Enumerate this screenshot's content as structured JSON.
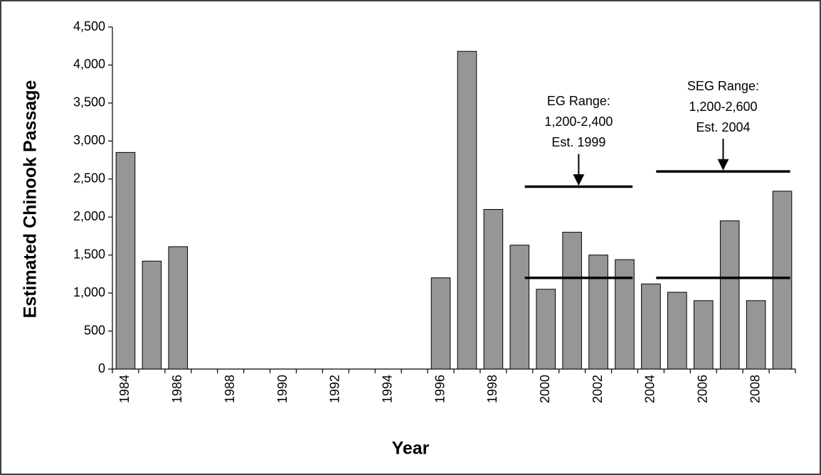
{
  "chart_data": {
    "type": "bar",
    "x_label": "Year",
    "y_label": "Estimated Chinook Passage",
    "categories": [
      "1984",
      null,
      "1986",
      null,
      "1988",
      null,
      "1990",
      null,
      "1992",
      null,
      "1994",
      null,
      "1996",
      null,
      "1998",
      null,
      "2000",
      null,
      "2002",
      null,
      "2004",
      null,
      "2006",
      null,
      "2008",
      null
    ],
    "values": [
      2850,
      1420,
      1610,
      null,
      null,
      null,
      null,
      null,
      null,
      null,
      null,
      null,
      1200,
      4180,
      2100,
      1630,
      1050,
      1800,
      1500,
      1440,
      1120,
      1010,
      900,
      1950,
      900,
      2340
    ],
    "color": "#969696",
    "ylim": [
      0,
      4500
    ],
    "yticks": [
      0,
      500,
      {
        "value": 1000,
        "label": "1,000"
      },
      {
        "value": 1500,
        "label": "1,500"
      },
      {
        "value": 2000,
        "label": "2,000"
      },
      {
        "value": 2500,
        "label": "2,500"
      },
      {
        "value": 3000,
        "label": "3,000"
      },
      {
        "value": 3500,
        "label": "3,500"
      },
      {
        "value": 4000,
        "label": "4,000"
      },
      {
        "value": 4500,
        "label": "4,500"
      }
    ],
    "grid": false,
    "ranges": [
      {
        "text": [
          "EG Range:",
          "1,200-2,400",
          "Est. 1999"
        ],
        "low": 1200,
        "high": 2400,
        "from": 15,
        "to": 19
      },
      {
        "text": [
          "SEG Range:",
          "1,200-2,600",
          "Est. 2004"
        ],
        "low": 1200,
        "high": 2600,
        "from": 20,
        "to": 25
      }
    ]
  }
}
